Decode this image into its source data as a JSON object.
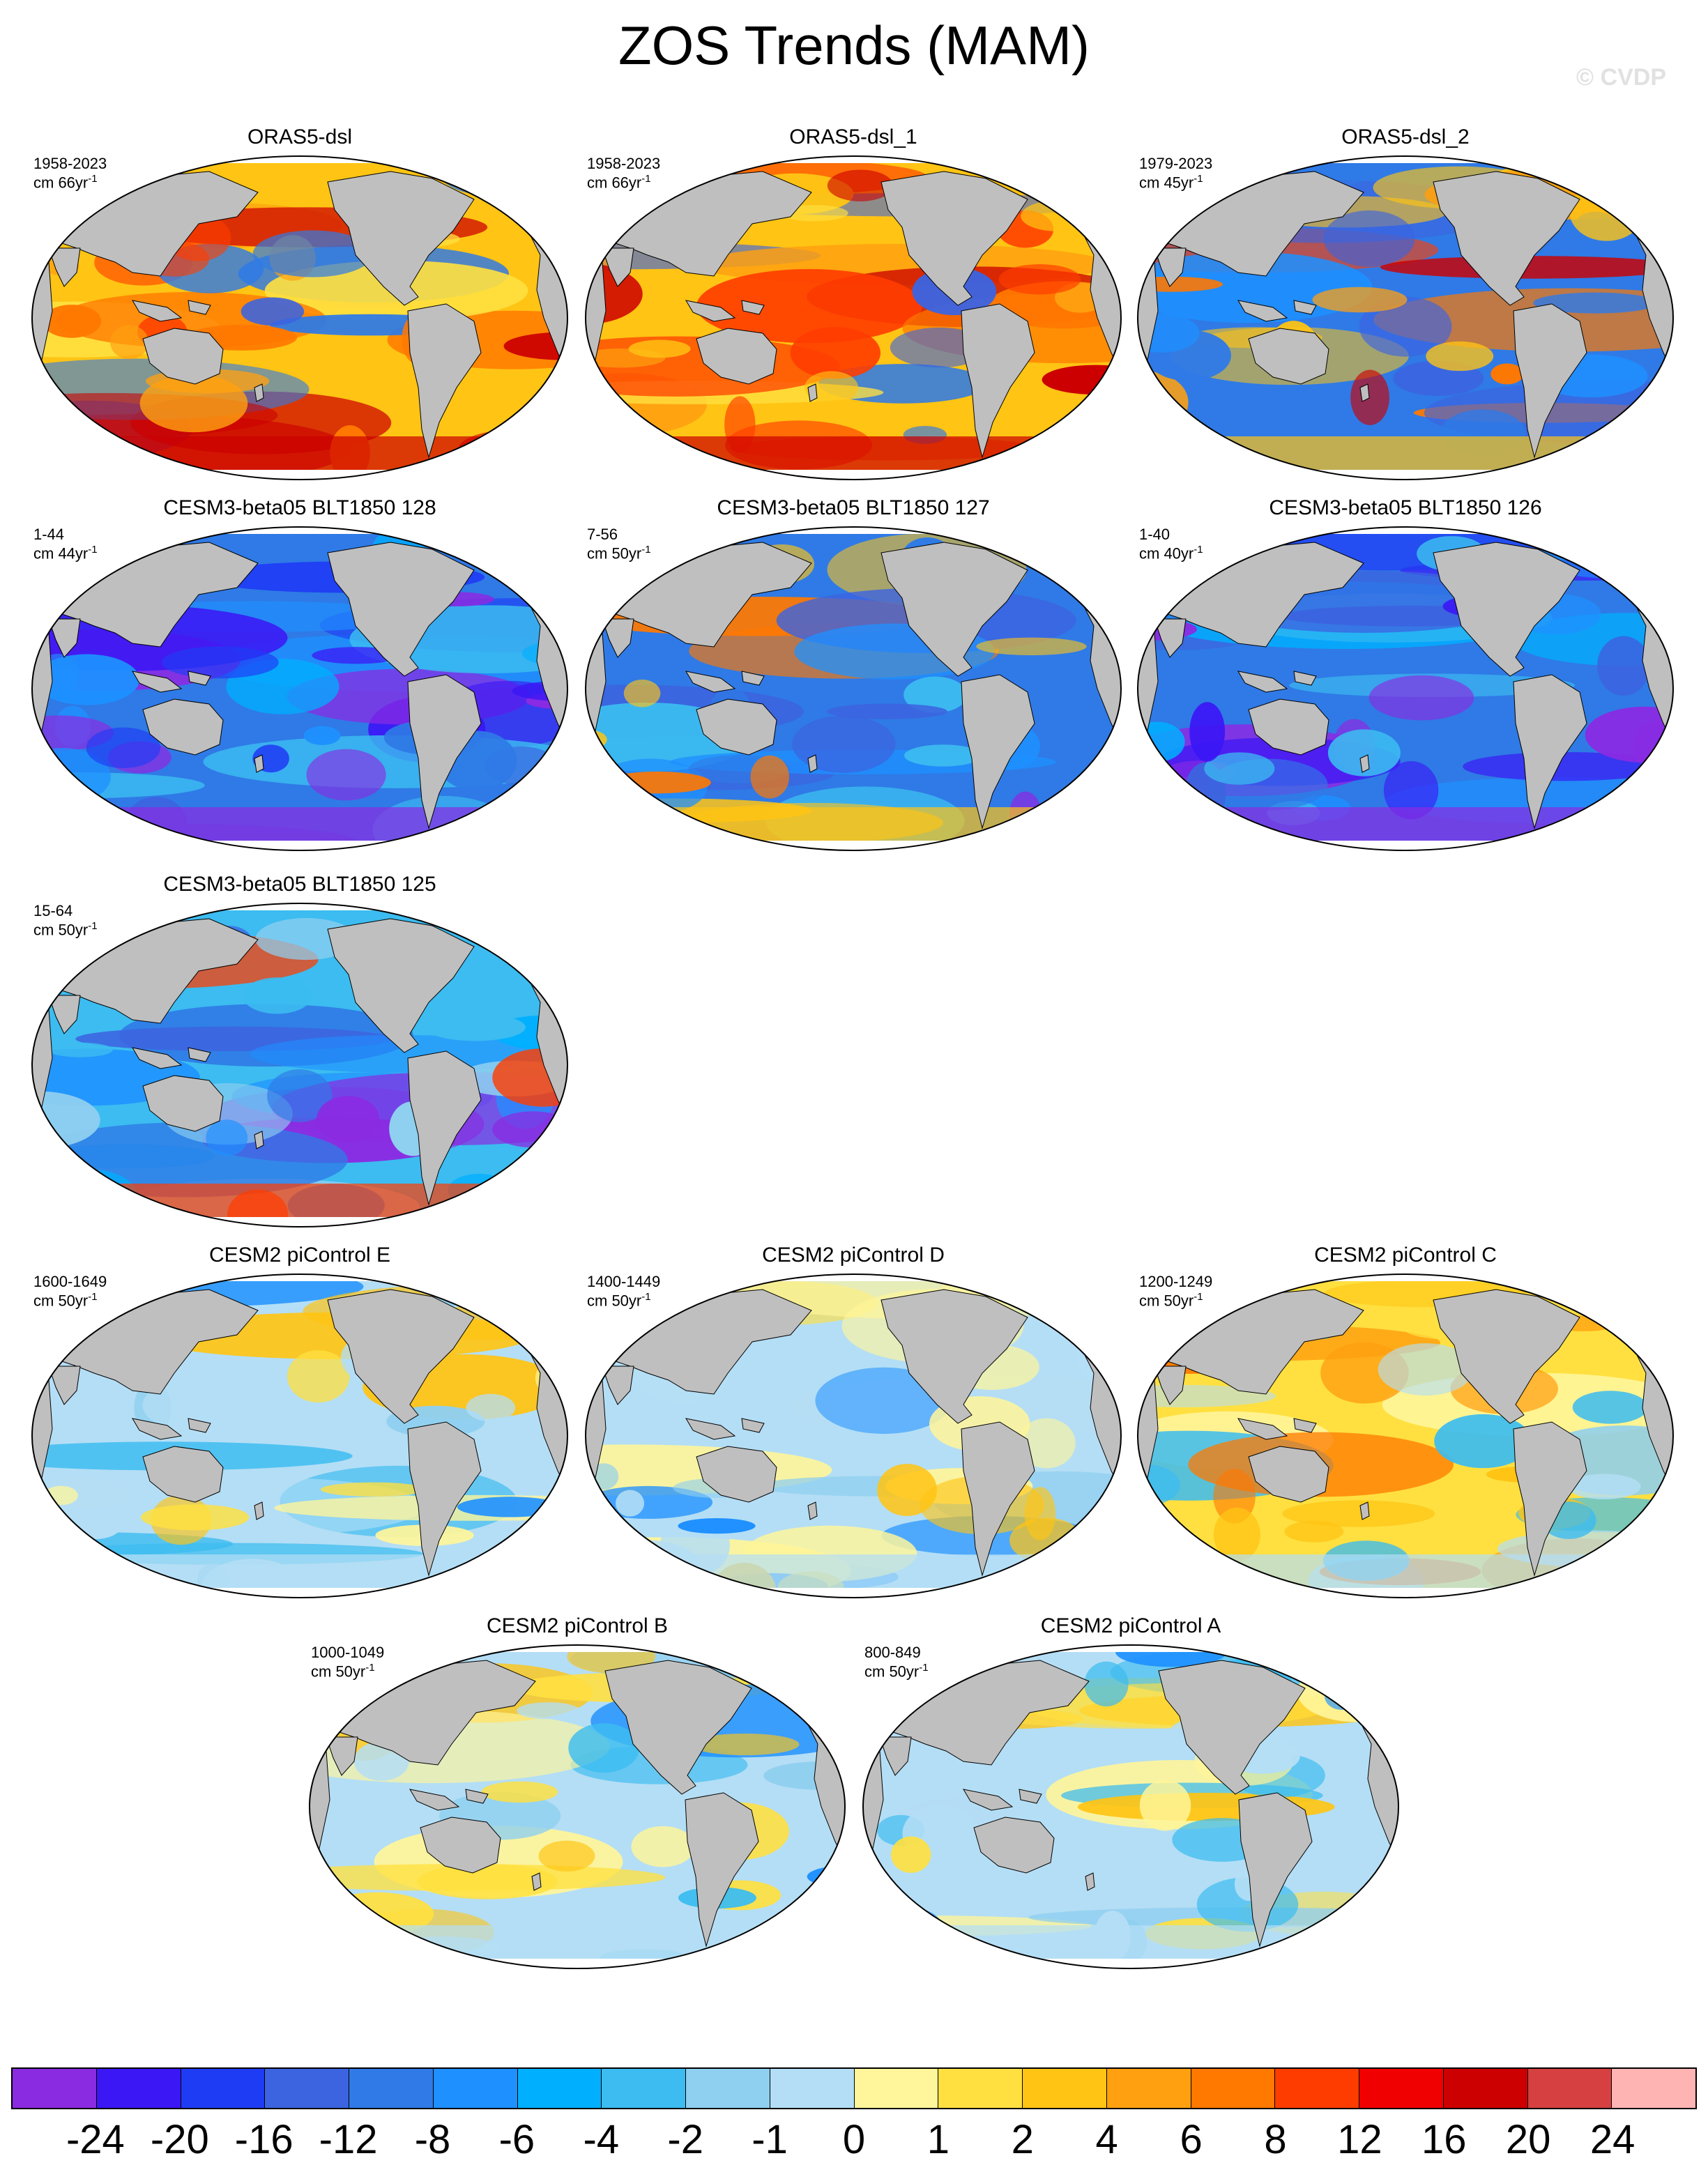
{
  "title": "ZOS Trends (MAM)",
  "credit": "© CVDP",
  "units_suffix": "-1",
  "colors": {
    "land": "#bfbfbf",
    "outline": "#000000",
    "ice": "#ffffff"
  },
  "panels": [
    {
      "name": "ORAS5-dsl",
      "period": "1958-2023",
      "unit": "cm 66yr",
      "tone": "warm-strong"
    },
    {
      "name": "ORAS5-dsl_1",
      "period": "1958-2023",
      "unit": "cm 66yr",
      "tone": "warm-strong"
    },
    {
      "name": "ORAS5-dsl_2",
      "period": "1979-2023",
      "unit": "cm 45yr",
      "tone": "mixed-strong"
    },
    {
      "name": "CESM3-beta05 BLT1850 128",
      "period": "1-44",
      "unit": "cm 44yr",
      "tone": "cool-strong"
    },
    {
      "name": "CESM3-beta05 BLT1850 127",
      "period": "7-56",
      "unit": "cm 50yr",
      "tone": "mixed-cool"
    },
    {
      "name": "CESM3-beta05 BLT1850 126",
      "period": "1-40",
      "unit": "cm 40yr",
      "tone": "cool-strong"
    },
    {
      "name": "CESM3-beta05 BLT1850 125",
      "period": "15-64",
      "unit": "cm 50yr",
      "tone": "cool"
    },
    {
      "name": "CESM2 piControl E",
      "period": "1600-1649",
      "unit": "cm 50yr",
      "tone": "weak"
    },
    {
      "name": "CESM2 piControl D",
      "period": "1400-1449",
      "unit": "cm 50yr",
      "tone": "weak"
    },
    {
      "name": "CESM2 piControl C",
      "period": "1200-1249",
      "unit": "cm 50yr",
      "tone": "weak-warm"
    },
    {
      "name": "CESM2 piControl B",
      "period": "1000-1049",
      "unit": "cm 50yr",
      "tone": "weak"
    },
    {
      "name": "CESM2 piControl A",
      "period": "800-849",
      "unit": "cm 50yr",
      "tone": "weak"
    }
  ],
  "colorbar": {
    "colors": [
      "#8a2be2",
      "#3b17f5",
      "#1f3cf5",
      "#3c64e0",
      "#2f7ae6",
      "#1e90ff",
      "#00b0ff",
      "#3cbcf0",
      "#8fcff0",
      "#b4def5",
      "#fff59a",
      "#ffe040",
      "#ffc414",
      "#ffa010",
      "#ff7800",
      "#ff3c00",
      "#f00000",
      "#cc0000",
      "#d64040",
      "#ffb4b4"
    ],
    "labels": [
      "-24",
      "-20",
      "-16",
      "-12",
      "-8",
      "-6",
      "-4",
      "-2",
      "-1",
      "0",
      "1",
      "2",
      "4",
      "6",
      "8",
      "12",
      "16",
      "20",
      "24"
    ]
  }
}
